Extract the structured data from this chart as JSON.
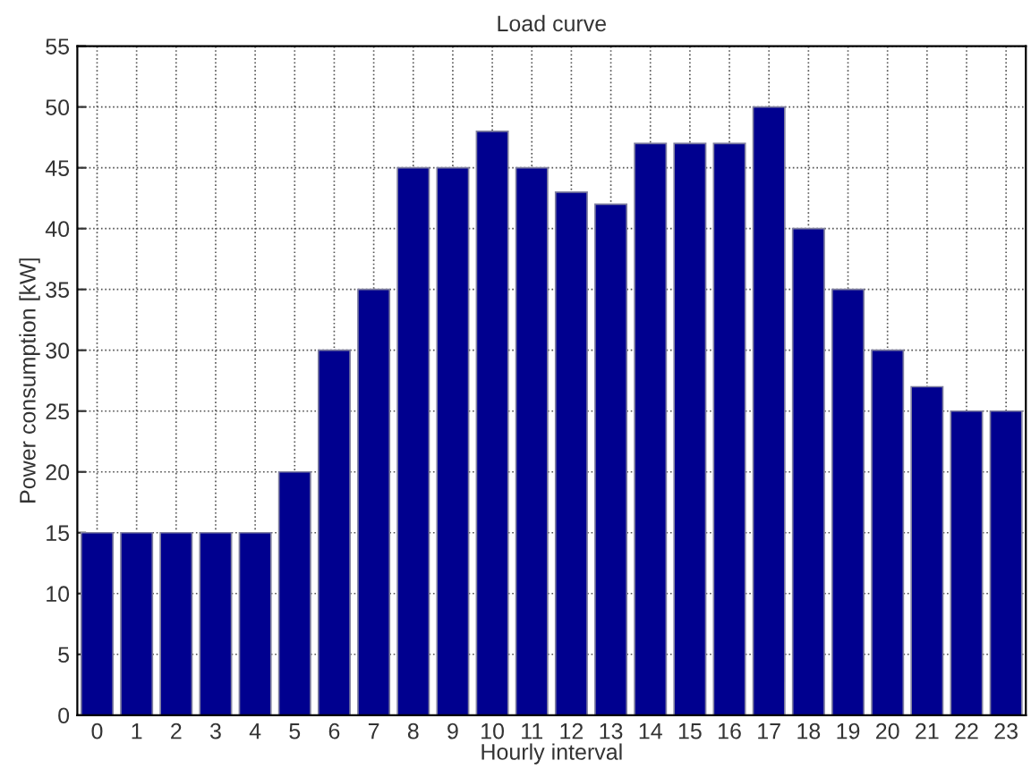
{
  "chart_data": {
    "type": "bar",
    "title": "Load curve",
    "xlabel": "Hourly interval",
    "ylabel": "Power consumption [kW]",
    "categories": [
      "0",
      "1",
      "2",
      "3",
      "4",
      "5",
      "6",
      "7",
      "8",
      "9",
      "10",
      "11",
      "12",
      "13",
      "14",
      "15",
      "16",
      "17",
      "18",
      "19",
      "20",
      "21",
      "22",
      "23"
    ],
    "values": [
      15,
      15,
      15,
      15,
      15,
      20,
      30,
      35,
      45,
      45,
      48,
      45,
      43,
      42,
      47,
      47,
      47,
      50,
      40,
      35,
      30,
      27,
      25,
      25
    ],
    "color": "#00008f",
    "ylim": [
      0,
      55
    ],
    "yticks": [
      0,
      5,
      10,
      15,
      20,
      25,
      30,
      35,
      40,
      45,
      50,
      55
    ],
    "grid": true,
    "line_style": "dotted"
  }
}
